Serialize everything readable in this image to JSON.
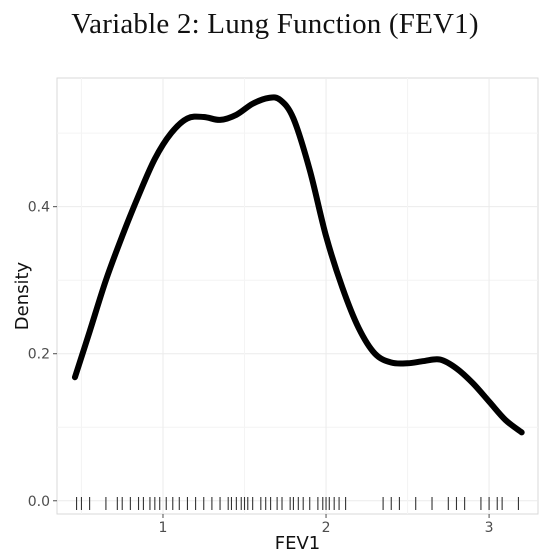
{
  "chart_data": {
    "type": "line",
    "title": "Variable 2: Lung Function (FEV1)",
    "xlabel": "FEV1",
    "ylabel": "Density",
    "xlim": [
      0.35,
      3.3
    ],
    "ylim": [
      -0.018,
      0.575
    ],
    "x_ticks": [
      1,
      2,
      3
    ],
    "x_tick_labels": [
      "1",
      "2",
      "3"
    ],
    "y_ticks": [
      0.0,
      0.2,
      0.4
    ],
    "y_tick_labels": [
      "0.0",
      "0.2",
      "0.4"
    ],
    "grid": true,
    "legend": "none",
    "line_color": "#000000",
    "series": [
      {
        "x": [
          0.46,
          0.55,
          0.65,
          0.75,
          0.85,
          0.95,
          1.05,
          1.15,
          1.25,
          1.35,
          1.45,
          1.55,
          1.65,
          1.72,
          1.8,
          1.9,
          2.0,
          2.1,
          2.2,
          2.3,
          2.4,
          2.5,
          2.6,
          2.7,
          2.8,
          2.9,
          3.0,
          3.1,
          3.2
        ],
        "y": [
          0.168,
          0.23,
          0.3,
          0.36,
          0.415,
          0.465,
          0.5,
          0.52,
          0.522,
          0.518,
          0.525,
          0.54,
          0.548,
          0.545,
          0.52,
          0.45,
          0.36,
          0.29,
          0.235,
          0.2,
          0.188,
          0.187,
          0.19,
          0.192,
          0.18,
          0.16,
          0.135,
          0.11,
          0.093
        ]
      }
    ],
    "rug": [
      0.47,
      0.5,
      0.55,
      0.65,
      0.72,
      0.75,
      0.8,
      0.85,
      0.88,
      0.92,
      0.95,
      0.98,
      1.02,
      1.06,
      1.1,
      1.15,
      1.2,
      1.25,
      1.3,
      1.35,
      1.4,
      1.42,
      1.45,
      1.48,
      1.5,
      1.52,
      1.55,
      1.6,
      1.63,
      1.66,
      1.7,
      1.73,
      1.78,
      1.8,
      1.83,
      1.86,
      1.9,
      1.95,
      1.98,
      2.0,
      2.02,
      2.05,
      2.08,
      2.12,
      2.35,
      2.4,
      2.45,
      2.55,
      2.65,
      2.75,
      2.8,
      2.85,
      2.95,
      3.0,
      3.05,
      3.08,
      3.18
    ]
  }
}
